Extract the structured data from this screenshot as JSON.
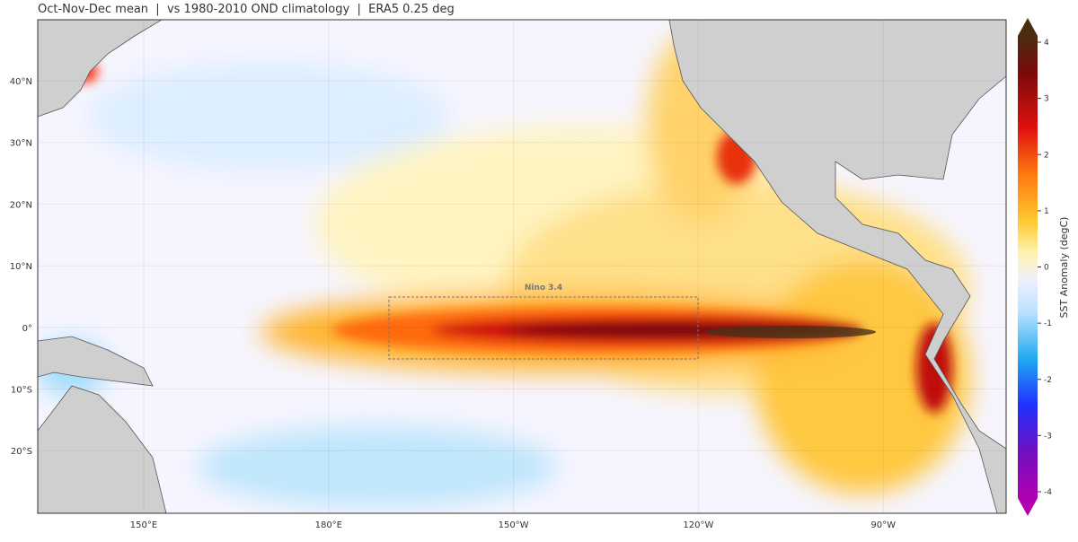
{
  "subtitle": "Oct-Nov-Dec mean  |  vs 1980-2010 OND climatology  |  ERA5 0.25 deg",
  "map": {
    "lat_labels": [
      "40°N",
      "30°N",
      "20°N",
      "10°N",
      "0°",
      "10°S",
      "20°S"
    ],
    "lon_labels": [
      "150°E",
      "180°E",
      "150°W",
      "120°W",
      "90°W"
    ],
    "region_label": "Nino 3.4"
  },
  "colorbar": {
    "label": "SST Anomaly (degC)",
    "ticks": [
      4,
      3,
      2,
      1,
      0,
      -1,
      -2,
      -3,
      -4
    ]
  }
}
